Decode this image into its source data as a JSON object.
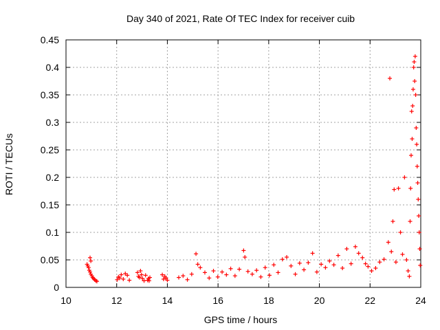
{
  "chart_data": {
    "type": "scatter",
    "title": "Day 340 of 2021, Rate Of TEC Index for receiver cuib",
    "xlabel": "GPS time / hours",
    "ylabel": "ROTI / TECUs",
    "xlim": [
      10,
      24
    ],
    "ylim": [
      0,
      0.45
    ],
    "x_ticks": [
      10,
      12,
      14,
      16,
      18,
      20,
      22,
      24
    ],
    "y_ticks": [
      0,
      0.05,
      0.1,
      0.15,
      0.2,
      0.25,
      0.3,
      0.35,
      0.4,
      0.45
    ],
    "grid": true,
    "marker": "+",
    "colors": {
      "series": "#ff0000",
      "axis": "#000000",
      "grid": "#a0a0a0",
      "background": "#ffffff"
    },
    "series": [
      {
        "values": [
          [
            10.83,
            0.042
          ],
          [
            10.86,
            0.039
          ],
          [
            10.89,
            0.036
          ],
          [
            10.92,
            0.031
          ],
          [
            10.95,
            0.028
          ],
          [
            10.98,
            0.024
          ],
          [
            11.02,
            0.021
          ],
          [
            11.05,
            0.018
          ],
          [
            11.09,
            0.016
          ],
          [
            11.13,
            0.014
          ],
          [
            11.18,
            0.012
          ],
          [
            11.22,
            0.011
          ],
          [
            10.95,
            0.054
          ],
          [
            10.98,
            0.048
          ],
          [
            12.02,
            0.014
          ],
          [
            12.07,
            0.019
          ],
          [
            12.12,
            0.017
          ],
          [
            12.18,
            0.023
          ],
          [
            12.26,
            0.015
          ],
          [
            12.34,
            0.025
          ],
          [
            12.42,
            0.022
          ],
          [
            12.5,
            0.013
          ],
          [
            12.82,
            0.027
          ],
          [
            12.86,
            0.02
          ],
          [
            12.9,
            0.018
          ],
          [
            12.94,
            0.03
          ],
          [
            12.98,
            0.023
          ],
          [
            13.02,
            0.016
          ],
          [
            13.08,
            0.012
          ],
          [
            13.14,
            0.022
          ],
          [
            13.22,
            0.013
          ],
          [
            13.25,
            0.016
          ],
          [
            13.28,
            0.012
          ],
          [
            13.31,
            0.018
          ],
          [
            13.8,
            0.023
          ],
          [
            13.85,
            0.015
          ],
          [
            13.9,
            0.02
          ],
          [
            13.95,
            0.017
          ],
          [
            14.0,
            0.013
          ],
          [
            14.45,
            0.018
          ],
          [
            14.62,
            0.021
          ],
          [
            14.79,
            0.014
          ],
          [
            14.96,
            0.024
          ],
          [
            15.13,
            0.061
          ],
          [
            15.2,
            0.042
          ],
          [
            15.3,
            0.036
          ],
          [
            15.48,
            0.027
          ],
          [
            15.65,
            0.017
          ],
          [
            15.82,
            0.03
          ],
          [
            15.99,
            0.019
          ],
          [
            16.16,
            0.028
          ],
          [
            16.33,
            0.023
          ],
          [
            16.5,
            0.034
          ],
          [
            16.67,
            0.021
          ],
          [
            16.84,
            0.033
          ],
          [
            17.01,
            0.067
          ],
          [
            17.06,
            0.055
          ],
          [
            17.18,
            0.029
          ],
          [
            17.35,
            0.024
          ],
          [
            17.52,
            0.031
          ],
          [
            17.69,
            0.019
          ],
          [
            17.86,
            0.036
          ],
          [
            18.03,
            0.022
          ],
          [
            18.2,
            0.041
          ],
          [
            18.37,
            0.027
          ],
          [
            18.54,
            0.051
          ],
          [
            18.71,
            0.055
          ],
          [
            18.88,
            0.039
          ],
          [
            19.05,
            0.024
          ],
          [
            19.22,
            0.044
          ],
          [
            19.39,
            0.032
          ],
          [
            19.56,
            0.045
          ],
          [
            19.73,
            0.062
          ],
          [
            19.9,
            0.028
          ],
          [
            20.07,
            0.042
          ],
          [
            20.24,
            0.036
          ],
          [
            20.4,
            0.048
          ],
          [
            20.57,
            0.041
          ],
          [
            20.74,
            0.058
          ],
          [
            20.91,
            0.035
          ],
          [
            21.08,
            0.07
          ],
          [
            21.25,
            0.043
          ],
          [
            21.42,
            0.074
          ],
          [
            21.55,
            0.062
          ],
          [
            21.7,
            0.054
          ],
          [
            21.82,
            0.043
          ],
          [
            21.92,
            0.038
          ],
          [
            22.06,
            0.03
          ],
          [
            22.22,
            0.035
          ],
          [
            22.38,
            0.046
          ],
          [
            22.55,
            0.051
          ],
          [
            22.72,
            0.082
          ],
          [
            22.78,
            0.38
          ],
          [
            22.84,
            0.065
          ],
          [
            22.9,
            0.12
          ],
          [
            22.95,
            0.178
          ],
          [
            23.02,
            0.046
          ],
          [
            23.12,
            0.18
          ],
          [
            23.2,
            0.1
          ],
          [
            23.28,
            0.06
          ],
          [
            23.36,
            0.2
          ],
          [
            23.44,
            0.05
          ],
          [
            23.5,
            0.03
          ],
          [
            23.55,
            0.02
          ],
          [
            23.58,
            0.12
          ],
          [
            23.6,
            0.18
          ],
          [
            23.62,
            0.24
          ],
          [
            23.64,
            0.32
          ],
          [
            23.66,
            0.27
          ],
          [
            23.68,
            0.33
          ],
          [
            23.7,
            0.36
          ],
          [
            23.72,
            0.4
          ],
          [
            23.74,
            0.41
          ],
          [
            23.76,
            0.375
          ],
          [
            23.78,
            0.42
          ],
          [
            23.8,
            0.35
          ],
          [
            23.82,
            0.29
          ],
          [
            23.84,
            0.26
          ],
          [
            23.86,
            0.22
          ],
          [
            23.88,
            0.19
          ],
          [
            23.9,
            0.16
          ],
          [
            23.92,
            0.13
          ],
          [
            23.94,
            0.1
          ],
          [
            23.96,
            0.07
          ],
          [
            23.98,
            0.04
          ]
        ]
      }
    ]
  }
}
